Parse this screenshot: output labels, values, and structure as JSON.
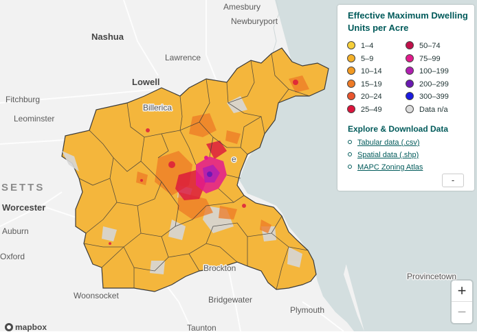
{
  "map": {
    "places": {
      "amesbury": "Amesbury",
      "newburyport": "Newburyport",
      "nashua": "Nashua",
      "lawrence": "Lawrence",
      "lowell": "Lowell",
      "billerica": "Billerica",
      "fitchburg": "Fitchburg",
      "leominster": "Leominster",
      "state": "SETTS",
      "worcester": "Worcester",
      "auburn": "Auburn",
      "oxford": "Oxford",
      "brockton": "Brockton",
      "woonsocket": "Woonsocket",
      "bridgewater": "Bridgewater",
      "plymouth": "Plymouth",
      "provincetown": "Provincetown",
      "taunton": "Taunton",
      "boston_fragment": "e"
    },
    "colors": {
      "land": "#f2f2f2",
      "water": "#d3dedf",
      "base_fill": "#f4b63c",
      "border": "#3a3a3a"
    }
  },
  "legend": {
    "title": "Effective Maximum Dwelling Units per Acre",
    "items_left": [
      {
        "label": "1–4",
        "color": "#f6cf3a"
      },
      {
        "label": "5–9",
        "color": "#f4b12a"
      },
      {
        "label": "10–14",
        "color": "#f29a22"
      },
      {
        "label": "15–19",
        "color": "#ee7a26"
      },
      {
        "label": "20–24",
        "color": "#e9552e"
      },
      {
        "label": "25–49",
        "color": "#dc143c"
      }
    ],
    "items_right": [
      {
        "label": "50–74",
        "color": "#c0104a"
      },
      {
        "label": "75–99",
        "color": "#e21b8c"
      },
      {
        "label": "100–199",
        "color": "#b01fb0"
      },
      {
        "label": "200–299",
        "color": "#6a1ab2"
      },
      {
        "label": "300–399",
        "color": "#1a1ae0"
      },
      {
        "label": "Data n/a",
        "color": "#dcdcdc"
      }
    ],
    "explore_title": "Explore & Download Data",
    "links": [
      {
        "label": "Tabular data (.csv)"
      },
      {
        "label": "Spatial data (.shp)"
      },
      {
        "label": "MAPC Zoning Atlas"
      }
    ],
    "collapse_label": "-"
  },
  "controls": {
    "zoom_in": "+",
    "zoom_out": "−"
  },
  "attribution": {
    "logo_text": "mapbox"
  }
}
